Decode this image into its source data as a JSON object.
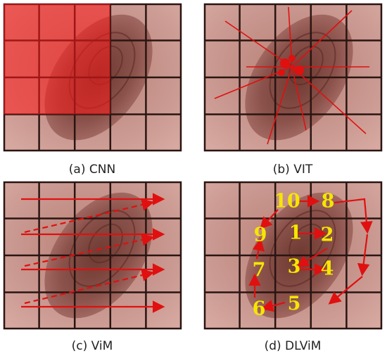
{
  "panels": [
    {
      "caption": "(a) CNN"
    },
    {
      "caption": "(b) VIT"
    },
    {
      "caption": "(c) ViM"
    },
    {
      "caption": "(d) DLViM"
    }
  ],
  "order_labels": [
    "1",
    "2",
    "3",
    "4",
    "5",
    "6",
    "7",
    "8",
    "9",
    "10"
  ]
}
